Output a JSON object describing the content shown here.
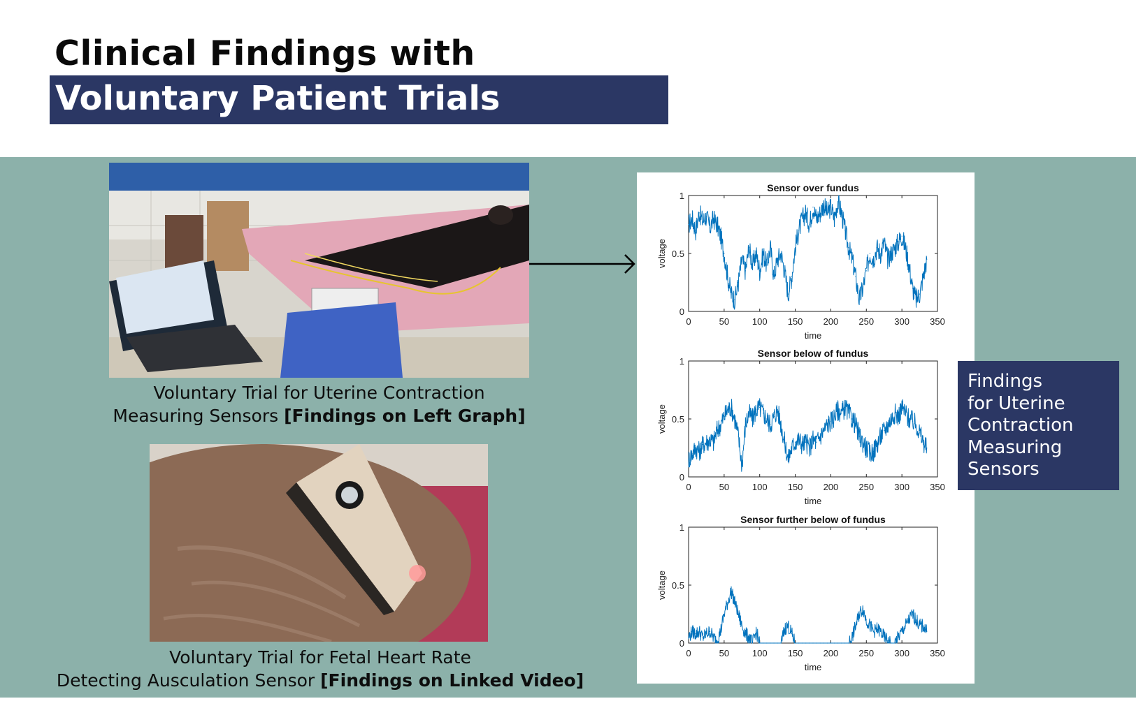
{
  "header": {
    "title_line1": "Clinical Findings with",
    "title_line2": "Voluntary Patient Trials"
  },
  "photos": {
    "uterine_trial": {
      "caption_line1": "Voluntary Trial for Uterine Contraction",
      "caption_line2_plain": "Measuring Sensors ",
      "caption_line2_bold": "[Findings on Left Graph]"
    },
    "fetal_trial": {
      "caption_line1": "Voluntary Trial for Fetal Heart Rate",
      "caption_line2_plain": "Detecting Ausculation Sensor ",
      "caption_line2_bold": "[Findings on Linked Video]"
    }
  },
  "findings_box": {
    "lines": [
      "Findings",
      "for Uterine",
      "Contraction",
      "Measuring",
      "Sensors"
    ]
  },
  "colors": {
    "navy": "#2b3764",
    "teal": "#8cb1aa",
    "plot_line": "#0072bd"
  },
  "chart_data": [
    {
      "type": "line",
      "title": "Sensor over fundus",
      "xlabel": "time",
      "ylabel": "voltage",
      "xlim": [
        0,
        350
      ],
      "ylim": [
        0,
        1
      ],
      "xticks": [
        0,
        50,
        100,
        150,
        200,
        250,
        300,
        350
      ],
      "yticks": [
        0,
        0.5,
        1
      ],
      "ytick_labels": [
        "0",
        "0.5",
        "1"
      ],
      "grid": false,
      "x": [
        0,
        5,
        10,
        15,
        20,
        25,
        30,
        35,
        40,
        45,
        50,
        55,
        60,
        65,
        70,
        75,
        80,
        85,
        90,
        95,
        100,
        105,
        110,
        115,
        120,
        125,
        130,
        135,
        140,
        145,
        150,
        155,
        160,
        165,
        170,
        175,
        180,
        185,
        190,
        195,
        200,
        205,
        210,
        215,
        220,
        225,
        230,
        235,
        240,
        245,
        250,
        255,
        260,
        265,
        270,
        275,
        280,
        285,
        290,
        295,
        300,
        305,
        310,
        315,
        320,
        325,
        330,
        335
      ],
      "y": [
        0.75,
        0.8,
        0.7,
        0.85,
        0.78,
        0.82,
        0.72,
        0.8,
        0.75,
        0.65,
        0.5,
        0.3,
        0.15,
        0.1,
        0.25,
        0.45,
        0.35,
        0.55,
        0.4,
        0.5,
        0.35,
        0.5,
        0.4,
        0.55,
        0.3,
        0.45,
        0.5,
        0.35,
        0.15,
        0.3,
        0.55,
        0.7,
        0.8,
        0.85,
        0.75,
        0.9,
        0.8,
        0.85,
        0.92,
        0.85,
        0.9,
        0.8,
        0.95,
        0.85,
        0.7,
        0.55,
        0.45,
        0.3,
        0.1,
        0.2,
        0.35,
        0.5,
        0.45,
        0.55,
        0.5,
        0.6,
        0.45,
        0.5,
        0.55,
        0.6,
        0.65,
        0.55,
        0.4,
        0.2,
        0.1,
        0.15,
        0.3,
        0.45
      ]
    },
    {
      "type": "line",
      "title": "Sensor below of fundus",
      "xlabel": "time",
      "ylabel": "voltage",
      "xlim": [
        0,
        350
      ],
      "ylim": [
        0,
        1
      ],
      "xticks": [
        0,
        50,
        100,
        150,
        200,
        250,
        300,
        350
      ],
      "yticks": [
        0,
        0.5,
        1
      ],
      "ytick_labels": [
        "0",
        "0.5",
        "1"
      ],
      "grid": false,
      "x": [
        0,
        5,
        10,
        15,
        20,
        25,
        30,
        35,
        40,
        45,
        50,
        55,
        60,
        65,
        70,
        75,
        80,
        85,
        90,
        95,
        100,
        105,
        110,
        115,
        120,
        125,
        130,
        135,
        140,
        145,
        150,
        155,
        160,
        165,
        170,
        175,
        180,
        185,
        190,
        195,
        200,
        205,
        210,
        215,
        220,
        225,
        230,
        235,
        240,
        245,
        250,
        255,
        260,
        265,
        270,
        275,
        280,
        285,
        290,
        295,
        300,
        305,
        310,
        315,
        320,
        325,
        330,
        335
      ],
      "y": [
        0.15,
        0.2,
        0.25,
        0.22,
        0.28,
        0.3,
        0.32,
        0.3,
        0.4,
        0.45,
        0.52,
        0.58,
        0.6,
        0.5,
        0.35,
        0.1,
        0.45,
        0.55,
        0.5,
        0.58,
        0.6,
        0.55,
        0.5,
        0.45,
        0.52,
        0.58,
        0.45,
        0.3,
        0.15,
        0.25,
        0.3,
        0.32,
        0.28,
        0.3,
        0.25,
        0.32,
        0.3,
        0.35,
        0.4,
        0.45,
        0.48,
        0.52,
        0.58,
        0.55,
        0.6,
        0.55,
        0.5,
        0.45,
        0.35,
        0.3,
        0.25,
        0.2,
        0.22,
        0.28,
        0.35,
        0.4,
        0.45,
        0.5,
        0.55,
        0.52,
        0.6,
        0.55,
        0.5,
        0.48,
        0.45,
        0.38,
        0.3,
        0.25
      ]
    },
    {
      "type": "line",
      "title": "Sensor further below of fundus",
      "xlabel": "time",
      "ylabel": "voltage",
      "xlim": [
        0,
        350
      ],
      "ylim": [
        0,
        1
      ],
      "xticks": [
        0,
        50,
        100,
        150,
        200,
        250,
        300,
        350
      ],
      "yticks": [
        0,
        0.5,
        1
      ],
      "ytick_labels": [
        "0",
        "0.5",
        "1"
      ],
      "grid": false,
      "x": [
        0,
        5,
        10,
        15,
        20,
        25,
        30,
        35,
        40,
        45,
        50,
        55,
        60,
        65,
        70,
        75,
        80,
        85,
        90,
        95,
        100,
        105,
        110,
        115,
        120,
        125,
        130,
        135,
        140,
        145,
        150,
        155,
        160,
        165,
        170,
        175,
        180,
        185,
        190,
        195,
        200,
        205,
        210,
        215,
        220,
        225,
        230,
        235,
        240,
        245,
        250,
        255,
        260,
        265,
        270,
        275,
        280,
        285,
        290,
        295,
        300,
        305,
        310,
        315,
        320,
        325,
        330,
        335
      ],
      "y": [
        0.05,
        0.1,
        0.08,
        0.1,
        0.05,
        0.08,
        0.1,
        0.05,
        0.02,
        0.1,
        0.25,
        0.35,
        0.45,
        0.35,
        0.25,
        0.15,
        0.08,
        0.05,
        0.0,
        0.1,
        0.0,
        0.0,
        0.0,
        0.0,
        0.0,
        0.0,
        0.0,
        0.12,
        0.15,
        0.08,
        0.0,
        0.0,
        0.0,
        0.0,
        0.0,
        0.0,
        0.0,
        0.0,
        0.0,
        0.0,
        0.0,
        0.0,
        0.0,
        0.0,
        0.0,
        0.0,
        0.05,
        0.15,
        0.25,
        0.3,
        0.2,
        0.15,
        0.1,
        0.12,
        0.1,
        0.05,
        0.02,
        0.0,
        0.0,
        0.05,
        0.1,
        0.15,
        0.2,
        0.25,
        0.2,
        0.15,
        0.15,
        0.1
      ]
    }
  ]
}
